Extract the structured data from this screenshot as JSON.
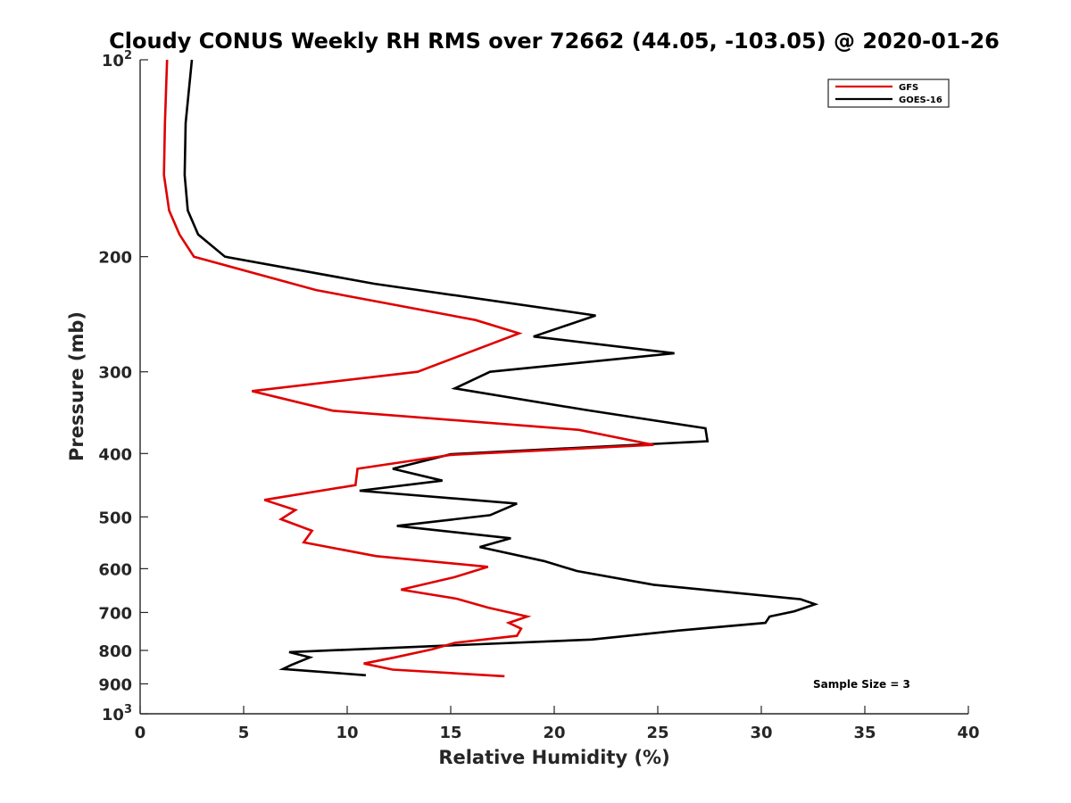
{
  "chart_data": {
    "type": "line",
    "title": "Cloudy CONUS Weekly RH RMS over 72662 (44.05, -103.05) @ 2020-01-26",
    "xlabel": "Relative Humidity (%)",
    "ylabel": "Pressure (mb)",
    "xlim": [
      0,
      40
    ],
    "ylim": [
      100,
      1000
    ],
    "y_scale": "log",
    "y_reversed": true,
    "grid": false,
    "legend_position": "top-right",
    "x_ticks": [
      "0",
      "5",
      "10",
      "15",
      "20",
      "25",
      "30",
      "35",
      "40"
    ],
    "y_ticks": [
      {
        "value": 100,
        "base": "10",
        "exp": "2"
      },
      {
        "value": 200,
        "label": "200"
      },
      {
        "value": 300,
        "label": "300"
      },
      {
        "value": 400,
        "label": "400"
      },
      {
        "value": 500,
        "label": "500"
      },
      {
        "value": 600,
        "label": "600"
      },
      {
        "value": 700,
        "label": "700"
      },
      {
        "value": 800,
        "label": "800"
      },
      {
        "value": 900,
        "label": "900"
      },
      {
        "value": 1000,
        "base": "10",
        "exp": "3"
      }
    ],
    "annotation": "Sample Size = 3",
    "series": [
      {
        "name": "GFS",
        "color": "#e00000",
        "points": [
          [
            1.3,
            100
          ],
          [
            1.2,
            125
          ],
          [
            1.15,
            150
          ],
          [
            1.4,
            170
          ],
          [
            1.9,
            185
          ],
          [
            2.6,
            200
          ],
          [
            8.5,
            225
          ],
          [
            16.2,
            250
          ],
          [
            18.3,
            262
          ],
          [
            13.4,
            300
          ],
          [
            5.4,
            321
          ],
          [
            9.3,
            344
          ],
          [
            21.2,
            368
          ],
          [
            24.8,
            388
          ],
          [
            15.0,
            402
          ],
          [
            10.5,
            422
          ],
          [
            10.4,
            447
          ],
          [
            6.0,
            471
          ],
          [
            7.5,
            488
          ],
          [
            6.8,
            504
          ],
          [
            8.3,
            525
          ],
          [
            7.9,
            547
          ],
          [
            11.4,
            574
          ],
          [
            16.8,
            596
          ],
          [
            15.2,
            618
          ],
          [
            12.6,
            646
          ],
          [
            15.3,
            667
          ],
          [
            16.8,
            688
          ],
          [
            18.7,
            710
          ],
          [
            17.8,
            726
          ],
          [
            18.4,
            741
          ],
          [
            18.2,
            760
          ],
          [
            15.2,
            779
          ],
          [
            14.1,
            797
          ],
          [
            12.3,
            820
          ],
          [
            10.8,
            838
          ],
          [
            12.2,
            856
          ],
          [
            17.6,
            876
          ]
        ]
      },
      {
        "name": "GOES-16",
        "color": "#000000",
        "points": [
          [
            2.5,
            100
          ],
          [
            2.2,
            125
          ],
          [
            2.15,
            150
          ],
          [
            2.3,
            170
          ],
          [
            2.8,
            185
          ],
          [
            4.1,
            200
          ],
          [
            11.3,
            220
          ],
          [
            22.0,
            246
          ],
          [
            19.0,
            265
          ],
          [
            25.8,
            281
          ],
          [
            16.9,
            300
          ],
          [
            15.2,
            318
          ],
          [
            21.5,
            343
          ],
          [
            27.3,
            366
          ],
          [
            27.4,
            383
          ],
          [
            15.0,
            401
          ],
          [
            12.2,
            422
          ],
          [
            14.6,
            440
          ],
          [
            10.6,
            456
          ],
          [
            18.2,
            477
          ],
          [
            16.9,
            497
          ],
          [
            12.4,
            516
          ],
          [
            17.9,
            539
          ],
          [
            16.4,
            556
          ],
          [
            19.5,
            584
          ],
          [
            21.1,
            605
          ],
          [
            24.8,
            635
          ],
          [
            31.9,
            668
          ],
          [
            32.6,
            680
          ],
          [
            31.6,
            697
          ],
          [
            30.4,
            710
          ],
          [
            30.2,
            726
          ],
          [
            26.2,
            745
          ],
          [
            21.8,
            770
          ],
          [
            7.2,
            805
          ],
          [
            8.2,
            820
          ],
          [
            7.3,
            842
          ],
          [
            6.9,
            854
          ],
          [
            10.9,
            873
          ]
        ]
      }
    ]
  }
}
